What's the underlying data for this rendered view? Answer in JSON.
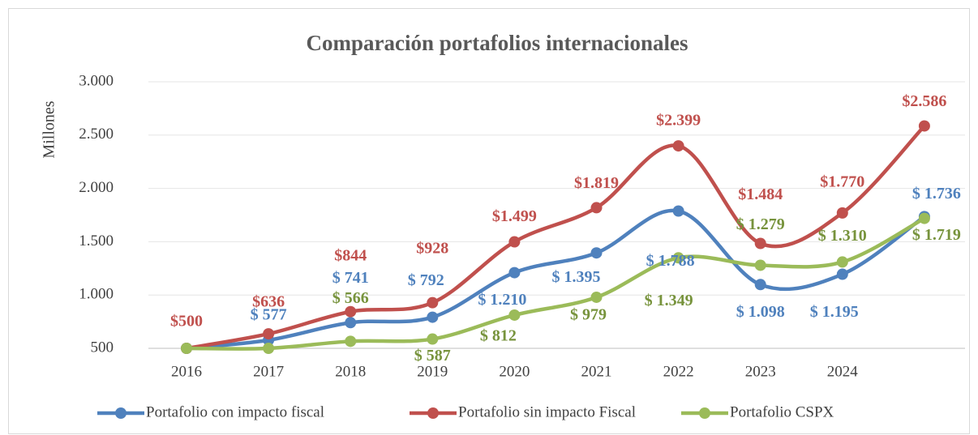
{
  "chart_data": {
    "type": "line",
    "title": "Comparación portafolios internacionales",
    "y_label": "Millones",
    "categories": [
      "2016",
      "2017",
      "2018",
      "2019",
      "2020",
      "2021",
      "2022",
      "2023",
      "2024",
      null
    ],
    "series": [
      {
        "name": "Portafolio con impacto fiscal",
        "color": "#4f81bd",
        "values": [
          500,
          577,
          741,
          792,
          1210,
          1395,
          1788,
          1098,
          1195,
          1736
        ],
        "value_labels": [
          null,
          "$ 577",
          "$ 741",
          "$ 792",
          "$ 1.210",
          "$ 1.395",
          "$ 1.788",
          "$ 1.098",
          "$ 1.195",
          "$ 1.736"
        ]
      },
      {
        "name": "Portafolio sin impacto Fiscal",
        "color": "#c0504d",
        "values": [
          500,
          636,
          844,
          928,
          1499,
          1819,
          2399,
          1484,
          1770,
          2586
        ],
        "value_labels": [
          "$500",
          "$636",
          "$844",
          "$928",
          "$1.499",
          "$1.819",
          "$2.399",
          "$1.484",
          "$1.770",
          "$2.586"
        ]
      },
      {
        "name": "Portafolio CSPX",
        "color": "#9bbb59",
        "values": [
          500,
          500,
          566,
          587,
          812,
          979,
          1349,
          1279,
          1310,
          1719
        ],
        "value_labels": [
          null,
          null,
          "$ 566",
          "$ 587",
          "$ 812",
          "$ 979",
          "$ 1.349",
          "$ 1.279",
          "$ 1.310",
          "$ 1.719"
        ]
      }
    ],
    "ylim": [
      500,
      3000
    ],
    "yticks": [
      500,
      {
        "value": 1000,
        "label": "1.000"
      },
      {
        "value": 1500,
        "label": "1.500"
      },
      {
        "value": 2000,
        "label": "2.000"
      },
      {
        "value": 2500,
        "label": "2.500"
      },
      {
        "value": 3000,
        "label": "3.000"
      }
    ],
    "grid": true,
    "legend": "bottom"
  }
}
